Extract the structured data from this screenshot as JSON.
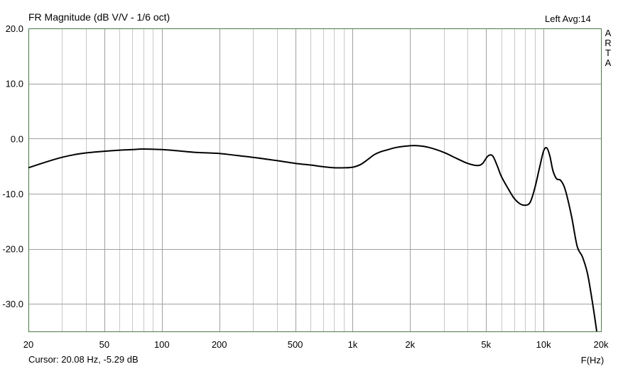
{
  "header": {
    "title": "FR Magnitude (dB V/V - 1/6 oct)",
    "channel_status": "Left  Avg:14"
  },
  "watermark": [
    "A",
    "R",
    "T",
    "A"
  ],
  "footer": {
    "cursor_readout": "Cursor: 20.08 Hz, -5.29 dB",
    "xlabel": "F(Hz)"
  },
  "colors": {
    "background": "#ffffff",
    "grid_minor": "#c8c8c8",
    "grid_major": "#a0a0a0",
    "frame": "#4a7a4a",
    "curve": "#000000"
  },
  "chart_data": {
    "type": "line",
    "title": "FR Magnitude (dB V/V - 1/6 oct)",
    "xlabel": "F(Hz)",
    "ylabel": "",
    "xscale": "log",
    "xlim": [
      20,
      20000
    ],
    "ylim": [
      -35,
      20
    ],
    "grid": true,
    "x_ticks": [
      {
        "value": 20,
        "label": "20"
      },
      {
        "value": 50,
        "label": "50"
      },
      {
        "value": 100,
        "label": "100"
      },
      {
        "value": 200,
        "label": "200"
      },
      {
        "value": 500,
        "label": "500"
      },
      {
        "value": 1000,
        "label": "1k"
      },
      {
        "value": 2000,
        "label": "2k"
      },
      {
        "value": 5000,
        "label": "5k"
      },
      {
        "value": 10000,
        "label": "10k"
      },
      {
        "value": 20000,
        "label": "20k"
      }
    ],
    "y_ticks": [
      {
        "value": 20,
        "label": "20.0"
      },
      {
        "value": 10,
        "label": "10.0"
      },
      {
        "value": 0,
        "label": "0.0"
      },
      {
        "value": -10,
        "label": "-10.0"
      },
      {
        "value": -20,
        "label": "-20.0"
      },
      {
        "value": -30,
        "label": "-30.0"
      }
    ],
    "series": [
      {
        "points": [
          [
            20,
            -5.3
          ],
          [
            25,
            -4.2
          ],
          [
            30,
            -3.4
          ],
          [
            35,
            -2.9
          ],
          [
            40,
            -2.6
          ],
          [
            50,
            -2.3
          ],
          [
            60,
            -2.1
          ],
          [
            70,
            -2.0
          ],
          [
            80,
            -1.9
          ],
          [
            100,
            -2.0
          ],
          [
            120,
            -2.2
          ],
          [
            150,
            -2.5
          ],
          [
            200,
            -2.7
          ],
          [
            250,
            -3.1
          ],
          [
            300,
            -3.4
          ],
          [
            400,
            -4.0
          ],
          [
            500,
            -4.5
          ],
          [
            600,
            -4.8
          ],
          [
            700,
            -5.1
          ],
          [
            800,
            -5.3
          ],
          [
            900,
            -5.3
          ],
          [
            1000,
            -5.2
          ],
          [
            1100,
            -4.7
          ],
          [
            1200,
            -3.8
          ],
          [
            1300,
            -2.9
          ],
          [
            1400,
            -2.4
          ],
          [
            1500,
            -2.1
          ],
          [
            1700,
            -1.6
          ],
          [
            2000,
            -1.3
          ],
          [
            2200,
            -1.3
          ],
          [
            2500,
            -1.6
          ],
          [
            3000,
            -2.5
          ],
          [
            3500,
            -3.6
          ],
          [
            4000,
            -4.5
          ],
          [
            4500,
            -4.9
          ],
          [
            4800,
            -4.5
          ],
          [
            5100,
            -3.2
          ],
          [
            5400,
            -3.1
          ],
          [
            5700,
            -4.8
          ],
          [
            6000,
            -6.8
          ],
          [
            6500,
            -9.0
          ],
          [
            7000,
            -10.8
          ],
          [
            7500,
            -11.8
          ],
          [
            8000,
            -12.1
          ],
          [
            8500,
            -11.6
          ],
          [
            9000,
            -9.0
          ],
          [
            9500,
            -5.5
          ],
          [
            10000,
            -2.3
          ],
          [
            10400,
            -1.7
          ],
          [
            10800,
            -3.2
          ],
          [
            11200,
            -5.8
          ],
          [
            11700,
            -7.3
          ],
          [
            12300,
            -7.6
          ],
          [
            13000,
            -9.3
          ],
          [
            14000,
            -14.0
          ],
          [
            15000,
            -19.5
          ],
          [
            16000,
            -21.5
          ],
          [
            17000,
            -24.5
          ],
          [
            18000,
            -29.5
          ],
          [
            19000,
            -35.0
          ]
        ]
      }
    ]
  }
}
